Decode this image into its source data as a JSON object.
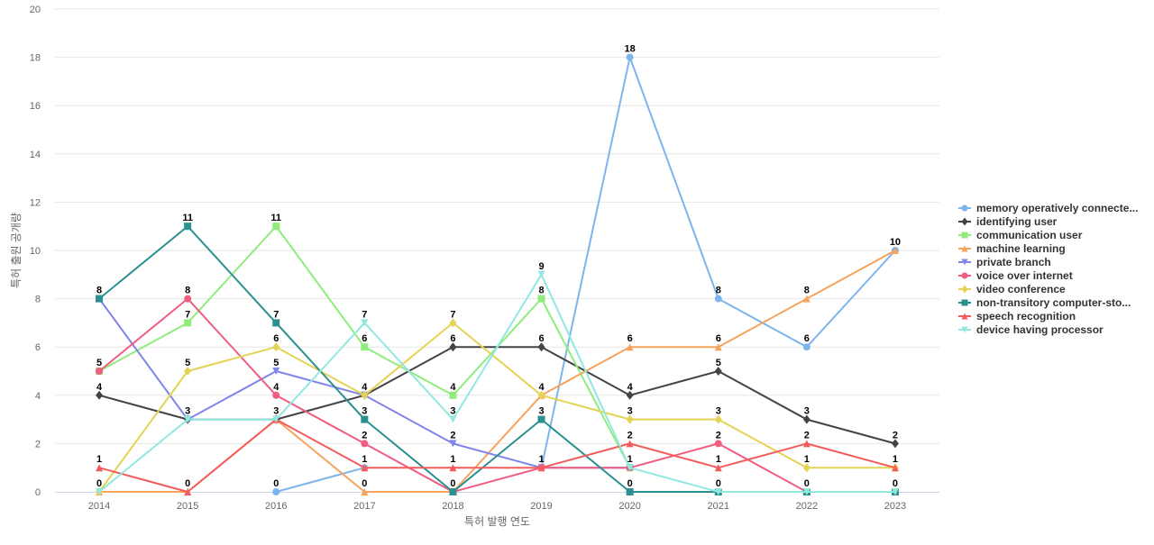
{
  "chart_data": {
    "type": "line",
    "title": "",
    "xlabel": "특허 발행 연도",
    "ylabel": "특허 출원 공개량",
    "categories": [
      "2014",
      "2015",
      "2016",
      "2017",
      "2018",
      "2019",
      "2020",
      "2021",
      "2022",
      "2023"
    ],
    "ylim": [
      0,
      20
    ],
    "yticks": [
      0,
      2,
      4,
      6,
      8,
      10,
      12,
      14,
      16,
      18,
      20
    ],
    "grid": true,
    "legend_position": "right",
    "series": [
      {
        "name": "memory operatively connecte...",
        "color": "#7cb5ec",
        "marker": "circle",
        "values": [
          null,
          null,
          0,
          1,
          null,
          1,
          18,
          8,
          6,
          10
        ],
        "labels": [
          null,
          null,
          0,
          null,
          null,
          1,
          18,
          8,
          6,
          null
        ]
      },
      {
        "name": "identifying user",
        "color": "#434348",
        "marker": "diamond",
        "values": [
          4,
          3,
          3,
          4,
          6,
          6,
          4,
          5,
          3,
          2
        ],
        "labels": [
          4,
          3,
          null,
          null,
          6,
          6,
          4,
          5,
          3,
          2
        ]
      },
      {
        "name": "communication user",
        "color": "#90ed7d",
        "marker": "square",
        "values": [
          5,
          7,
          11,
          6,
          4,
          8,
          1,
          null,
          null,
          null
        ],
        "labels": [
          5,
          7,
          11,
          6,
          4,
          8,
          null,
          null,
          null,
          null
        ]
      },
      {
        "name": "machine learning",
        "color": "#f7a35c",
        "marker": "triangle",
        "values": [
          0,
          0,
          3,
          0,
          0,
          4,
          6,
          6,
          8,
          10
        ],
        "labels": [
          null,
          null,
          null,
          0,
          null,
          4,
          6,
          6,
          8,
          10
        ]
      },
      {
        "name": "private branch",
        "color": "#8085e9",
        "marker": "triangle-down",
        "values": [
          8,
          3,
          5,
          4,
          2,
          1,
          1,
          null,
          null,
          null
        ],
        "labels": [
          null,
          null,
          5,
          null,
          2,
          null,
          null,
          null,
          null,
          null
        ]
      },
      {
        "name": "voice over internet",
        "color": "#f15c80",
        "marker": "circle",
        "values": [
          5,
          8,
          4,
          2,
          0,
          1,
          1,
          2,
          0,
          null
        ],
        "labels": [
          null,
          8,
          4,
          2,
          null,
          null,
          null,
          2,
          0,
          null
        ]
      },
      {
        "name": "video conference",
        "color": "#e4d354",
        "marker": "diamond",
        "values": [
          0,
          5,
          6,
          4,
          7,
          4,
          3,
          3,
          1,
          1
        ],
        "labels": [
          null,
          5,
          6,
          4,
          7,
          null,
          3,
          3,
          1,
          null
        ]
      },
      {
        "name": "non-transitory computer-sto...",
        "color": "#2b908f",
        "marker": "square",
        "values": [
          8,
          11,
          7,
          3,
          0,
          3,
          0,
          0,
          0,
          0
        ],
        "labels": [
          8,
          11,
          7,
          3,
          0,
          3,
          0,
          0,
          null,
          0
        ]
      },
      {
        "name": "speech recognition",
        "color": "#f45b5b",
        "marker": "triangle",
        "values": [
          1,
          0,
          3,
          1,
          1,
          1,
          2,
          1,
          2,
          1
        ],
        "labels": [
          1,
          0,
          3,
          1,
          1,
          null,
          2,
          1,
          2,
          1
        ]
      },
      {
        "name": "device having processor",
        "color": "#91e8e1",
        "marker": "triangle-down",
        "values": [
          0,
          3,
          3,
          7,
          3,
          9,
          1,
          0,
          0,
          0
        ],
        "labels": [
          0,
          null,
          null,
          7,
          3,
          9,
          1,
          null,
          null,
          null
        ]
      }
    ]
  }
}
